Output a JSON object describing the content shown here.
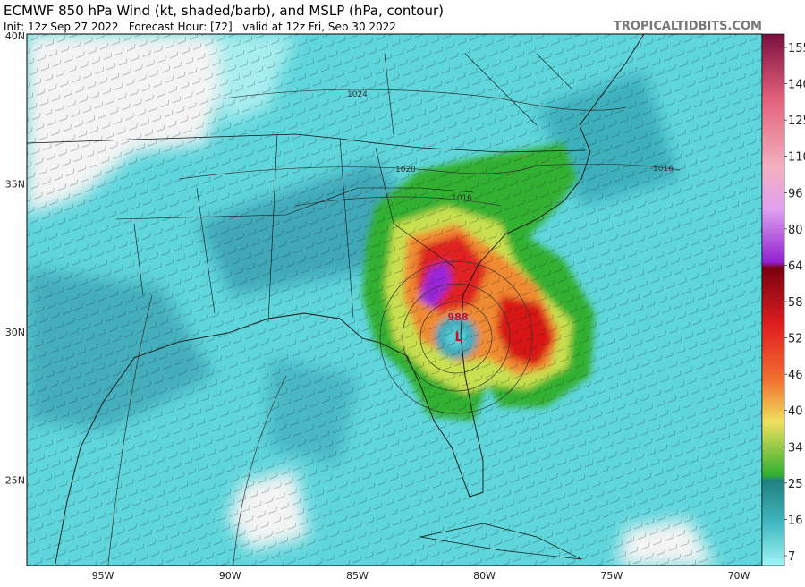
{
  "header": {
    "title": "ECMWF 850 hPa Wind (kt, shaded/barb), and MSLP (hPa, contour)",
    "subtitle": "Init: 12z Sep 27 2022   Forecast Hour: [72]   valid at 12z Fri, Sep 30 2022",
    "credit": "TROPICALTIDBITS.COM"
  },
  "map": {
    "lat_labels": [
      "40N",
      "35N",
      "30N",
      "25N"
    ],
    "lon_labels": [
      "95W",
      "90W",
      "85W",
      "80W",
      "75W",
      "70W"
    ],
    "contour_labels": [
      1024,
      1020,
      1016,
      1016
    ],
    "low": {
      "pressure": 988,
      "symbol": "L"
    }
  },
  "colorbar": {
    "labels": [
      155,
      140,
      125,
      110,
      96,
      80,
      64,
      58,
      52,
      46,
      40,
      34,
      25,
      16,
      7
    ]
  }
}
